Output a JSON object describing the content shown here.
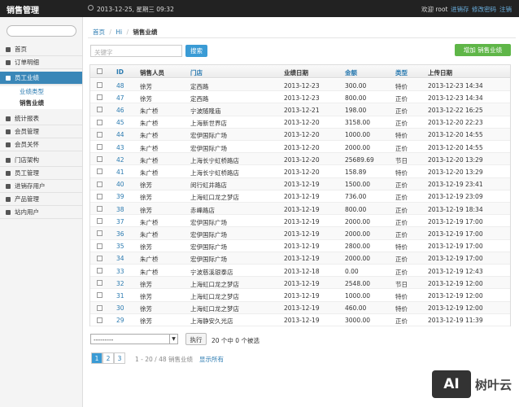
{
  "header": {
    "title": "销售管理",
    "datetime": "2013-12-25, 星期三 09:32",
    "welcome": "欢迎 root",
    "links": [
      "进销存",
      "修改密码",
      "注销"
    ]
  },
  "sidebar": {
    "menu": [
      {
        "label": "首页"
      },
      {
        "label": "订单明细"
      },
      {
        "label": "员工业绩",
        "children": [
          "业绩类型",
          "销售业绩"
        ]
      },
      {
        "label": "统计报表"
      },
      {
        "label": "会员管理"
      },
      {
        "label": "会员关怀"
      },
      {
        "label": "门店架构"
      },
      {
        "label": "员工管理"
      },
      {
        "label": "进销存用户"
      },
      {
        "label": "产品管理"
      },
      {
        "label": "站内用户"
      }
    ]
  },
  "breadcrumb": [
    "首页",
    "Hi",
    "销售业绩"
  ],
  "search": {
    "placeholder": "关键字",
    "button": "搜索"
  },
  "add_button": "增加 销售业绩",
  "table": {
    "columns": [
      "ID",
      "销售人员",
      "门店",
      "业绩日期",
      "金额",
      "类型",
      "上传日期"
    ],
    "rows": [
      [
        "48",
        "徐芳",
        "定西路",
        "2013-12-23",
        "300.00",
        "特价",
        "2013-12-23 14:34"
      ],
      [
        "47",
        "徐芳",
        "定西路",
        "2013-12-23",
        "800.00",
        "正价",
        "2013-12-23 14:34"
      ],
      [
        "46",
        "朱广桥",
        "宁波随隆庙",
        "2013-12-21",
        "198.00",
        "正价",
        "2013-12-22 16:25"
      ],
      [
        "45",
        "朱广桥",
        "上海新世界店",
        "2013-12-20",
        "3158.00",
        "正价",
        "2013-12-20 22:23"
      ],
      [
        "44",
        "朱广桥",
        "宏伊国际广场",
        "2013-12-20",
        "1000.00",
        "特价",
        "2013-12-20 14:55"
      ],
      [
        "43",
        "朱广桥",
        "宏伊国际广场",
        "2013-12-20",
        "2000.00",
        "正价",
        "2013-12-20 14:55"
      ],
      [
        "42",
        "朱广桥",
        "上海长宁虹桥路店",
        "2013-12-20",
        "25689.69",
        "节日",
        "2013-12-20 13:29"
      ],
      [
        "41",
        "朱广桥",
        "上海长宁虹桥路店",
        "2013-12-20",
        "158.89",
        "特价",
        "2013-12-20 13:29"
      ],
      [
        "40",
        "徐芳",
        "闵行虹井路店",
        "2013-12-19",
        "1500.00",
        "正价",
        "2013-12-19 23:41"
      ],
      [
        "39",
        "徐芳",
        "上海虹口龙之梦店",
        "2013-12-19",
        "736.00",
        "正价",
        "2013-12-19 23:09"
      ],
      [
        "38",
        "徐芳",
        "赤峰路店",
        "2013-12-19",
        "800.00",
        "正价",
        "2013-12-19 18:34"
      ],
      [
        "37",
        "朱广桥",
        "宏伊国际广场",
        "2013-12-19",
        "2000.00",
        "正价",
        "2013-12-19 17:00"
      ],
      [
        "36",
        "朱广桥",
        "宏伊国际广场",
        "2013-12-19",
        "2000.00",
        "正价",
        "2013-12-19 17:00"
      ],
      [
        "35",
        "徐芳",
        "宏伊国际广场",
        "2013-12-19",
        "2800.00",
        "特价",
        "2013-12-19 17:00"
      ],
      [
        "34",
        "朱广桥",
        "宏伊国际广场",
        "2013-12-19",
        "2000.00",
        "正价",
        "2013-12-19 17:00"
      ],
      [
        "33",
        "朱广桥",
        "宁波慈溪银泰店",
        "2013-12-18",
        "0.00",
        "正价",
        "2013-12-19 12:43"
      ],
      [
        "32",
        "徐芳",
        "上海虹口龙之梦店",
        "2013-12-19",
        "2548.00",
        "节日",
        "2013-12-19 12:00"
      ],
      [
        "31",
        "徐芳",
        "上海虹口龙之梦店",
        "2013-12-19",
        "1000.00",
        "特价",
        "2013-12-19 12:00"
      ],
      [
        "30",
        "徐芳",
        "上海虹口龙之梦店",
        "2013-12-19",
        "460.00",
        "特价",
        "2013-12-19 12:00"
      ],
      [
        "29",
        "徐芳",
        "上海静安久光店",
        "2013-12-19",
        "3000.00",
        "正价",
        "2013-12-19 11:39"
      ]
    ]
  },
  "actions": {
    "select": "---------",
    "button": "执行",
    "status": "20 个中 0 个被选"
  },
  "pagination": {
    "pages": [
      "1",
      "2",
      "3"
    ],
    "summary": "1 - 20 / 48 销售业绩",
    "show_all": "显示所有"
  },
  "watermark": {
    "logo": "AI",
    "text": "树叶云"
  }
}
